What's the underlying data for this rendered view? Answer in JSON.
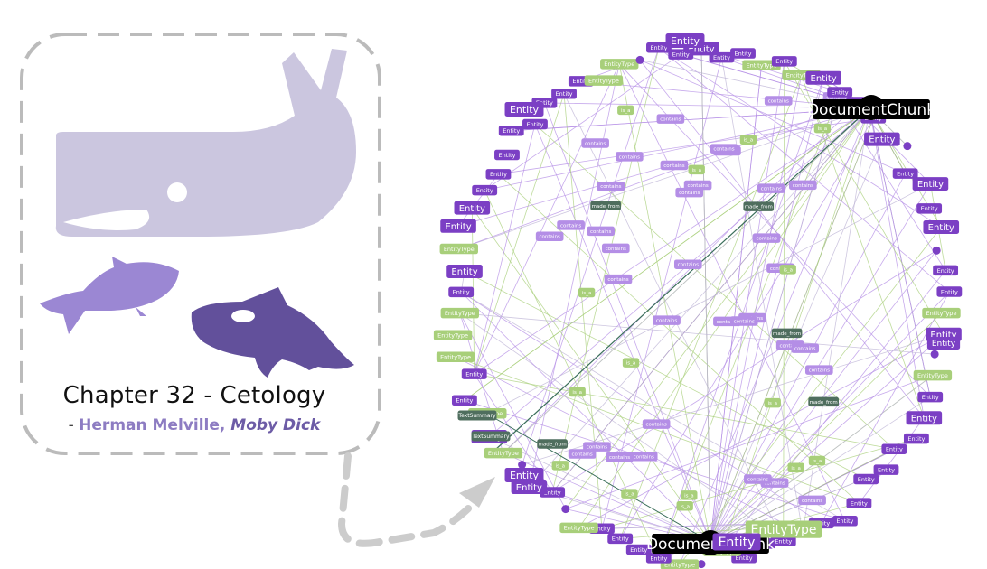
{
  "caption": {
    "title": "Chapter 32 - Cetology",
    "dash": "- ",
    "author": "Herman Melville",
    "separator": ", ",
    "book": "Moby Dick"
  },
  "colors": {
    "entity": "#7b3fc4",
    "entity_type": "#a8cf7a",
    "document_chunk": "#000000",
    "text_summary": "#4f6e5e",
    "contains_edge": "#b48ee6",
    "is_a_edge": "#a8cf7a",
    "made_from_edge": "#3a6e5a",
    "whale_light": "#cbc6df",
    "whale_mid": "#9b87d3",
    "whale_dark": "#62509b",
    "frame": "#bbbbbb"
  },
  "graph": {
    "labels": {
      "entity": "Entity",
      "entity_type": "EntityType",
      "document_chunk": "DocumentChunk",
      "text_summary": "TextSummary",
      "contains": "contains",
      "is_a": "is_a",
      "made_from": "made_from"
    },
    "big_labels": [
      "DocumentChunk",
      "DocumentChunk",
      "Entity",
      "EntityType"
    ]
  }
}
